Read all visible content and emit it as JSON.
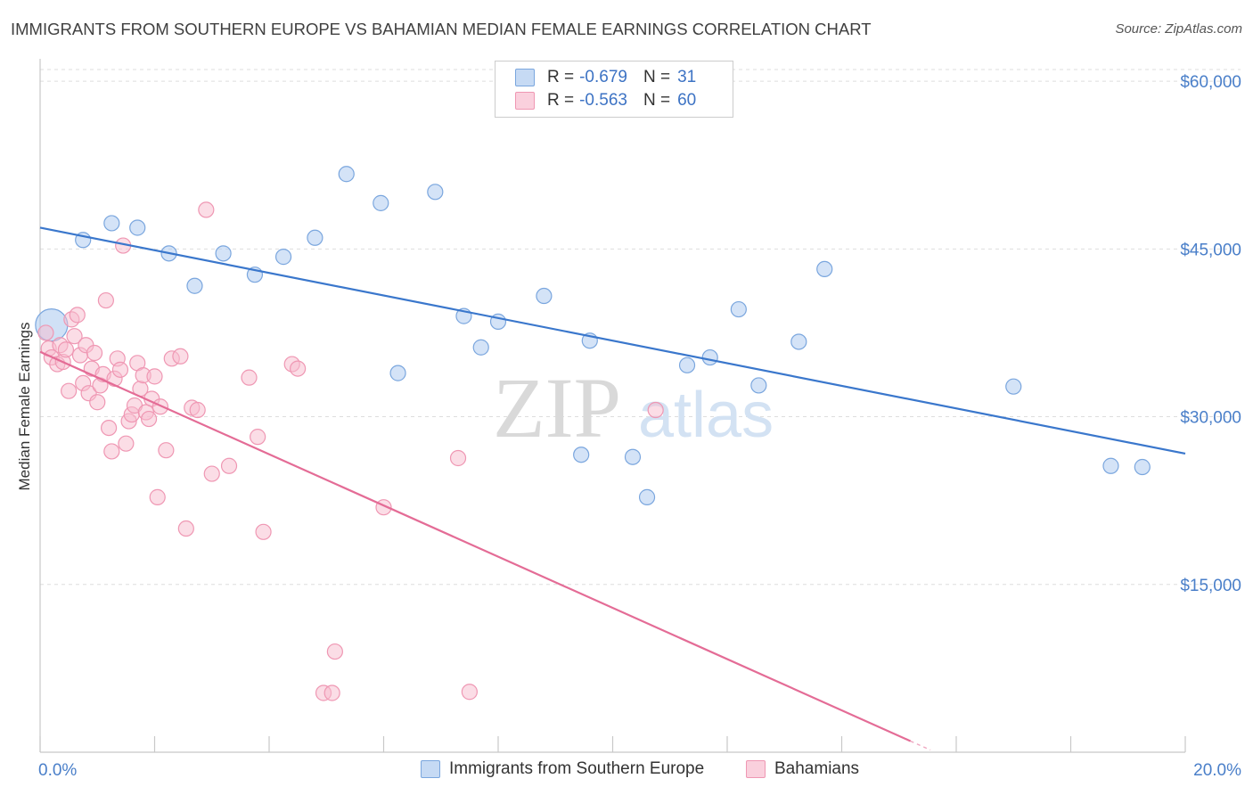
{
  "title": "IMMIGRANTS FROM SOUTHERN EUROPE VS BAHAMIAN MEDIAN FEMALE EARNINGS CORRELATION CHART",
  "source": "Source: ZipAtlas.com",
  "watermark": {
    "zip": "ZIP",
    "atlas": "atlas"
  },
  "legend": {
    "rows": [
      {
        "r_label": "R =",
        "r_value": "-0.679",
        "n_label": "N =",
        "n_value": "31"
      },
      {
        "r_label": "R =",
        "r_value": "-0.563",
        "n_label": "N =",
        "n_value": "60"
      }
    ]
  },
  "chart_data": {
    "type": "scatter",
    "title": "IMMIGRANTS FROM SOUTHERN EUROPE VS BAHAMIAN MEDIAN FEMALE EARNINGS CORRELATION CHART",
    "xlabel": "",
    "ylabel": "Median Female Earnings",
    "xlim": [
      0,
      20
    ],
    "ylim": [
      0,
      62000
    ],
    "x_tick_labels": [
      "0.0%",
      "20.0%"
    ],
    "y_ticks": [
      15000,
      30000,
      45000,
      60000
    ],
    "y_tick_labels": [
      "$15,000",
      "$30,000",
      "$45,000",
      "$60,000"
    ],
    "grid": true,
    "legend_position": "top-center",
    "series": [
      {
        "name": "Immigrants from Southern Europe",
        "color": "#a9c8ef",
        "stroke": "#7aa6de",
        "trend_color": "#3a77cc",
        "trend": {
          "x0": 0.0,
          "y0": 46900,
          "x1": 20.0,
          "y1": 26700
        },
        "points": [
          [
            0.2,
            38200
          ],
          [
            0.75,
            45800
          ],
          [
            1.25,
            47300
          ],
          [
            1.7,
            46900
          ],
          [
            2.25,
            44600
          ],
          [
            2.7,
            41700
          ],
          [
            3.2,
            44600
          ],
          [
            3.75,
            42700
          ],
          [
            4.25,
            44300
          ],
          [
            4.8,
            46000
          ],
          [
            5.35,
            51700
          ],
          [
            5.95,
            49100
          ],
          [
            6.25,
            33900
          ],
          [
            6.9,
            50100
          ],
          [
            7.4,
            39000
          ],
          [
            7.7,
            36200
          ],
          [
            8.0,
            38500
          ],
          [
            8.8,
            40800
          ],
          [
            9.45,
            26600
          ],
          [
            9.6,
            36800
          ],
          [
            10.35,
            26400
          ],
          [
            10.6,
            22800
          ],
          [
            11.3,
            34600
          ],
          [
            11.7,
            35300
          ],
          [
            12.2,
            39600
          ],
          [
            12.55,
            32800
          ],
          [
            13.25,
            36700
          ],
          [
            13.7,
            43200
          ],
          [
            17.0,
            32700
          ],
          [
            18.7,
            25600
          ],
          [
            19.25,
            25500
          ]
        ]
      },
      {
        "name": "Bahamians",
        "color": "#f7bccd",
        "stroke": "#ef97b3",
        "trend_color": "#e46c96",
        "trend": {
          "x0": 0.0,
          "y0": 35800,
          "x1": 15.2,
          "y1": 1000
        },
        "points": [
          [
            0.1,
            37500
          ],
          [
            0.15,
            36100
          ],
          [
            0.2,
            35300
          ],
          [
            0.3,
            34700
          ],
          [
            0.35,
            36400
          ],
          [
            0.4,
            34900
          ],
          [
            0.45,
            36000
          ],
          [
            0.5,
            32300
          ],
          [
            0.55,
            38700
          ],
          [
            0.6,
            37200
          ],
          [
            0.65,
            39100
          ],
          [
            0.7,
            35500
          ],
          [
            0.75,
            33000
          ],
          [
            0.8,
            36400
          ],
          [
            0.85,
            32100
          ],
          [
            0.9,
            34300
          ],
          [
            0.95,
            35700
          ],
          [
            1.0,
            31300
          ],
          [
            1.05,
            32800
          ],
          [
            1.1,
            33800
          ],
          [
            1.15,
            40400
          ],
          [
            1.2,
            29000
          ],
          [
            1.25,
            26900
          ],
          [
            1.3,
            33400
          ],
          [
            1.35,
            35200
          ],
          [
            1.4,
            34200
          ],
          [
            1.45,
            45300
          ],
          [
            1.5,
            27600
          ],
          [
            1.55,
            29600
          ],
          [
            1.6,
            30200
          ],
          [
            1.65,
            31000
          ],
          [
            1.7,
            34800
          ],
          [
            1.75,
            32500
          ],
          [
            1.8,
            33700
          ],
          [
            1.85,
            30400
          ],
          [
            1.9,
            29800
          ],
          [
            1.95,
            31600
          ],
          [
            2.0,
            33600
          ],
          [
            2.05,
            22800
          ],
          [
            2.1,
            30900
          ],
          [
            2.2,
            27000
          ],
          [
            2.3,
            35200
          ],
          [
            2.45,
            35400
          ],
          [
            2.55,
            20000
          ],
          [
            2.65,
            30800
          ],
          [
            2.75,
            30600
          ],
          [
            2.9,
            48500
          ],
          [
            3.0,
            24900
          ],
          [
            3.3,
            25600
          ],
          [
            3.65,
            33500
          ],
          [
            3.8,
            28200
          ],
          [
            3.9,
            19700
          ],
          [
            4.4,
            34700
          ],
          [
            4.5,
            34300
          ],
          [
            4.95,
            5300
          ],
          [
            5.1,
            5300
          ],
          [
            5.15,
            9000
          ],
          [
            6.0,
            21900
          ],
          [
            7.3,
            26300
          ],
          [
            7.5,
            5400
          ],
          [
            10.75,
            30600
          ]
        ]
      }
    ]
  },
  "bottom_legend": [
    {
      "label": "Immigrants from Southern Europe"
    },
    {
      "label": "Bahamians"
    }
  ]
}
